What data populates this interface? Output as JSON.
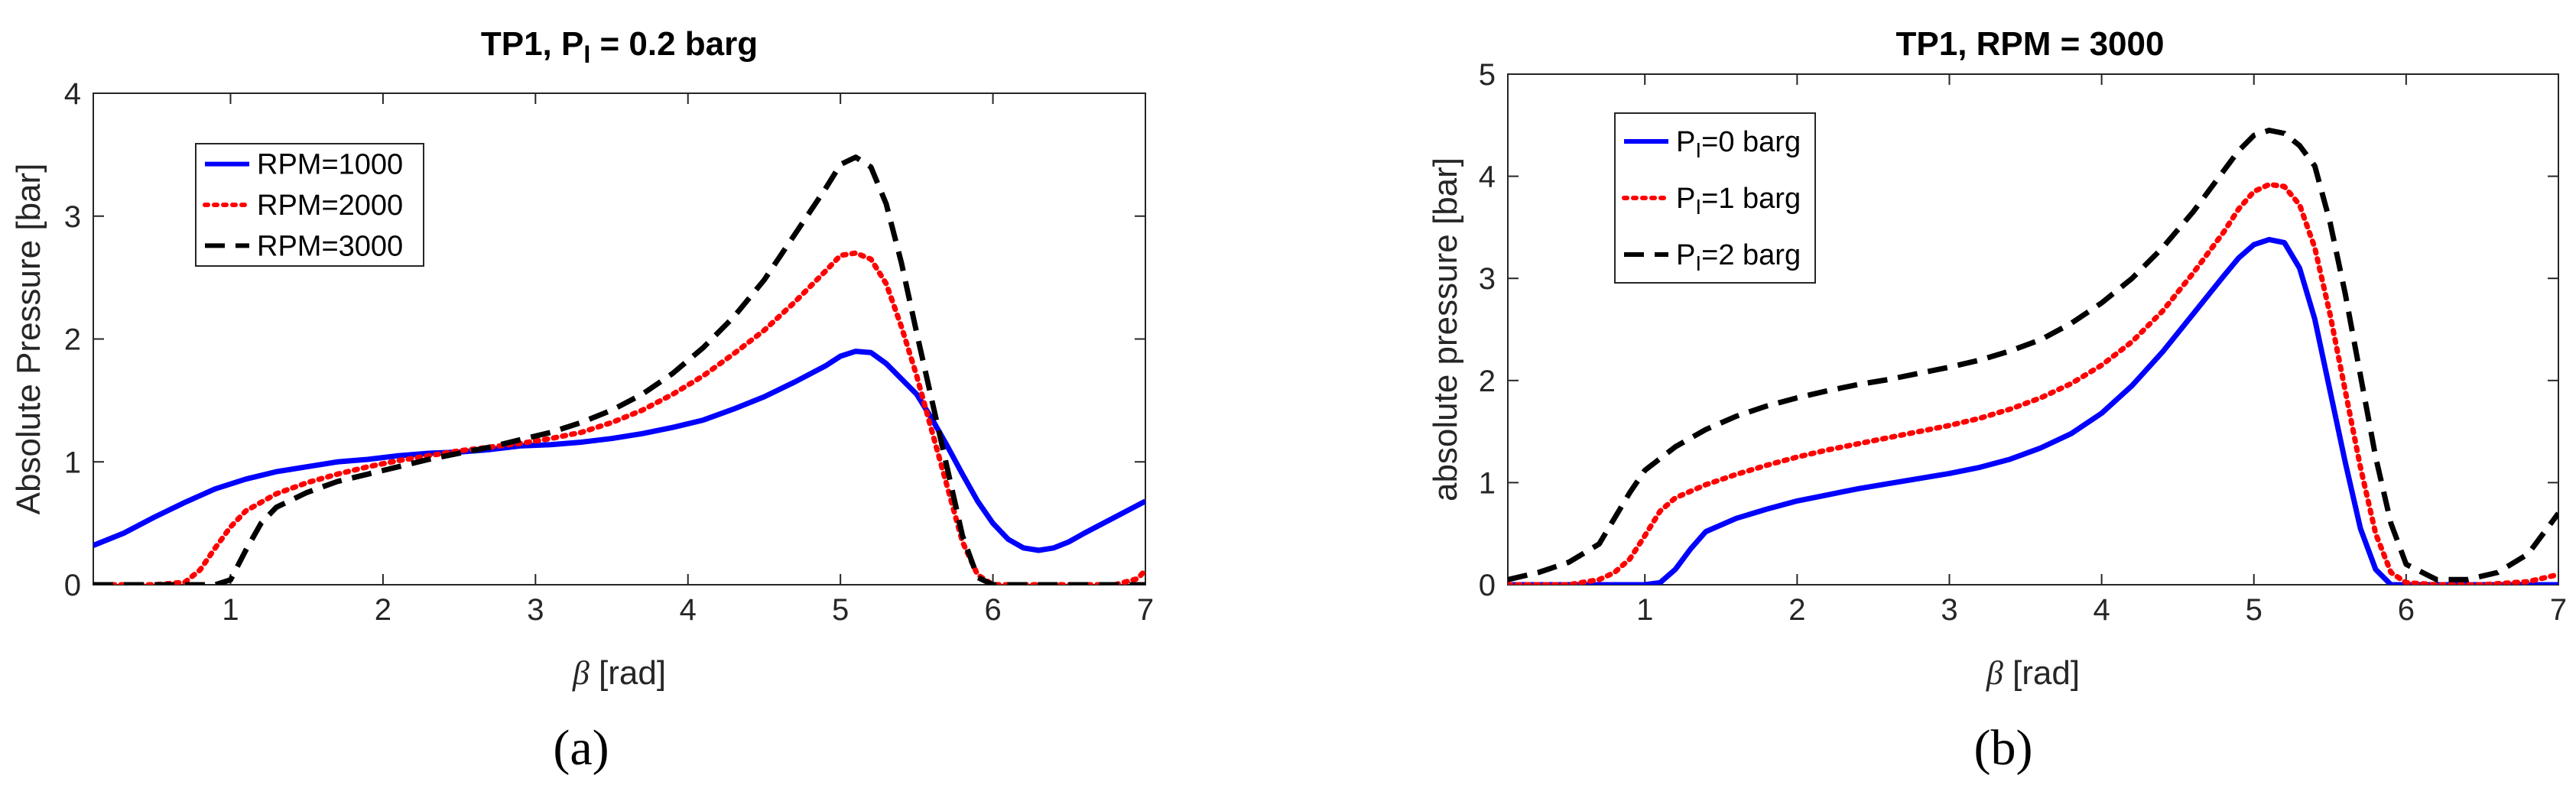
{
  "chart_data": [
    {
      "type": "line",
      "title": "TP1, P",
      "title_sub": "I",
      "title_rest": " = 0.2 barg",
      "xlabel_symbol": "β",
      "xlabel_unit": " [rad]",
      "ylabel": "Absolute Pressure [bar]",
      "xlim": [
        0.1,
        7
      ],
      "ylim": [
        0,
        4
      ],
      "xticks": [
        1,
        2,
        3,
        4,
        5,
        6,
        7
      ],
      "yticks": [
        0,
        1,
        2,
        3,
        4
      ],
      "panel_label": "(a)",
      "legend_position": "top-left",
      "series": [
        {
          "name": "RPM=1000",
          "color": "#0000ff",
          "style": "solid",
          "x": [
            0.1,
            0.3,
            0.5,
            0.7,
            0.9,
            1.1,
            1.3,
            1.5,
            1.7,
            1.9,
            2.1,
            2.3,
            2.5,
            2.7,
            2.9,
            3.1,
            3.3,
            3.5,
            3.7,
            3.9,
            4.1,
            4.3,
            4.5,
            4.7,
            4.9,
            5.0,
            5.1,
            5.2,
            5.3,
            5.5,
            5.6,
            5.7,
            5.8,
            5.9,
            6.0,
            6.1,
            6.2,
            6.3,
            6.4,
            6.5,
            6.6,
            6.8,
            7.0
          ],
          "y": [
            0.32,
            0.42,
            0.55,
            0.67,
            0.78,
            0.86,
            0.92,
            0.96,
            1.0,
            1.02,
            1.05,
            1.07,
            1.08,
            1.1,
            1.13,
            1.14,
            1.16,
            1.19,
            1.23,
            1.28,
            1.34,
            1.43,
            1.53,
            1.65,
            1.78,
            1.86,
            1.9,
            1.89,
            1.8,
            1.55,
            1.35,
            1.13,
            0.9,
            0.68,
            0.5,
            0.37,
            0.3,
            0.28,
            0.3,
            0.35,
            0.42,
            0.55,
            0.68
          ]
        },
        {
          "name": "RPM=2000",
          "color": "#ff0000",
          "style": "dotted",
          "x": [
            0.1,
            0.3,
            0.5,
            0.7,
            0.8,
            0.9,
            1.0,
            1.1,
            1.3,
            1.5,
            1.7,
            1.9,
            2.1,
            2.3,
            2.5,
            2.7,
            2.9,
            3.1,
            3.3,
            3.5,
            3.7,
            3.9,
            4.1,
            4.3,
            4.5,
            4.7,
            4.9,
            5.0,
            5.1,
            5.2,
            5.3,
            5.4,
            5.5,
            5.6,
            5.7,
            5.8,
            5.9,
            6.0,
            6.2,
            6.4,
            6.6,
            6.8,
            6.95,
            7.0
          ],
          "y": [
            0.0,
            0.0,
            0.0,
            0.02,
            0.12,
            0.3,
            0.47,
            0.6,
            0.74,
            0.83,
            0.9,
            0.96,
            1.01,
            1.05,
            1.09,
            1.12,
            1.15,
            1.19,
            1.24,
            1.32,
            1.42,
            1.55,
            1.7,
            1.88,
            2.07,
            2.3,
            2.55,
            2.68,
            2.7,
            2.65,
            2.45,
            2.1,
            1.7,
            1.25,
            0.8,
            0.35,
            0.08,
            0.0,
            0.0,
            0.0,
            0.0,
            0.0,
            0.05,
            0.12
          ]
        },
        {
          "name": "RPM=3000",
          "color": "#000000",
          "style": "dashed",
          "x": [
            0.1,
            0.3,
            0.5,
            0.7,
            0.9,
            1.0,
            1.1,
            1.2,
            1.3,
            1.5,
            1.7,
            1.9,
            2.1,
            2.3,
            2.5,
            2.7,
            2.9,
            3.1,
            3.3,
            3.5,
            3.7,
            3.9,
            4.1,
            4.3,
            4.5,
            4.7,
            4.9,
            5.0,
            5.1,
            5.2,
            5.3,
            5.4,
            5.5,
            5.6,
            5.7,
            5.8,
            5.9,
            6.0,
            6.2,
            6.4,
            6.6,
            6.8,
            7.0
          ],
          "y": [
            0.0,
            0.0,
            0.0,
            0.0,
            0.0,
            0.04,
            0.28,
            0.5,
            0.63,
            0.75,
            0.84,
            0.9,
            0.96,
            1.02,
            1.07,
            1.12,
            1.18,
            1.24,
            1.32,
            1.42,
            1.55,
            1.72,
            1.93,
            2.18,
            2.48,
            2.85,
            3.22,
            3.42,
            3.48,
            3.4,
            3.1,
            2.62,
            2.05,
            1.5,
            0.95,
            0.4,
            0.06,
            0.0,
            0.0,
            0.0,
            0.0,
            0.0,
            0.0
          ]
        }
      ]
    },
    {
      "type": "line",
      "title": "TP1, RPM = 3000",
      "xlabel_symbol": "β",
      "xlabel_unit": " [rad]",
      "ylabel": "absolute pressure [bar]",
      "xlim": [
        0.1,
        7
      ],
      "ylim": [
        0,
        5
      ],
      "xticks": [
        1,
        2,
        3,
        4,
        5,
        6,
        7
      ],
      "yticks": [
        0,
        1,
        2,
        3,
        4,
        5
      ],
      "panel_label": "(b)",
      "legend_position": "top-left",
      "series": [
        {
          "name": "P",
          "name_sub": "I",
          "name_rest": "=0 barg",
          "color": "#0000ff",
          "style": "solid",
          "x": [
            0.1,
            0.3,
            0.5,
            0.7,
            0.9,
            1.0,
            1.1,
            1.2,
            1.3,
            1.4,
            1.6,
            1.8,
            2.0,
            2.2,
            2.4,
            2.6,
            2.8,
            3.0,
            3.2,
            3.4,
            3.6,
            3.8,
            4.0,
            4.2,
            4.4,
            4.6,
            4.8,
            4.9,
            5.0,
            5.1,
            5.2,
            5.3,
            5.4,
            5.5,
            5.6,
            5.7,
            5.8,
            5.9,
            6.0,
            6.2,
            6.5,
            6.8,
            7.0
          ],
          "y": [
            0.0,
            0.0,
            0.0,
            0.0,
            0.0,
            0.0,
            0.02,
            0.15,
            0.35,
            0.52,
            0.65,
            0.74,
            0.82,
            0.88,
            0.94,
            0.99,
            1.04,
            1.09,
            1.15,
            1.23,
            1.34,
            1.48,
            1.68,
            1.95,
            2.28,
            2.65,
            3.02,
            3.2,
            3.33,
            3.38,
            3.35,
            3.1,
            2.6,
            1.9,
            1.2,
            0.55,
            0.15,
            0.0,
            0.0,
            0.0,
            0.0,
            0.0,
            0.0
          ]
        },
        {
          "name": "P",
          "name_sub": "I",
          "name_rest": "=1 barg",
          "color": "#ff0000",
          "style": "dotted",
          "x": [
            0.1,
            0.3,
            0.5,
            0.7,
            0.8,
            0.9,
            1.0,
            1.1,
            1.2,
            1.4,
            1.6,
            1.8,
            2.0,
            2.2,
            2.4,
            2.6,
            2.8,
            3.0,
            3.2,
            3.4,
            3.6,
            3.8,
            4.0,
            4.2,
            4.4,
            4.6,
            4.8,
            4.9,
            5.0,
            5.1,
            5.2,
            5.3,
            5.4,
            5.5,
            5.6,
            5.7,
            5.8,
            5.9,
            6.0,
            6.2,
            6.5,
            6.8,
            7.0
          ],
          "y": [
            0.0,
            0.0,
            0.0,
            0.05,
            0.12,
            0.25,
            0.48,
            0.72,
            0.85,
            0.98,
            1.08,
            1.17,
            1.25,
            1.32,
            1.38,
            1.44,
            1.5,
            1.56,
            1.63,
            1.72,
            1.83,
            1.97,
            2.15,
            2.38,
            2.68,
            3.05,
            3.45,
            3.68,
            3.85,
            3.92,
            3.9,
            3.72,
            3.3,
            2.65,
            1.9,
            1.15,
            0.5,
            0.12,
            0.02,
            0.0,
            0.0,
            0.03,
            0.1
          ]
        },
        {
          "name": "P",
          "name_sub": "I",
          "name_rest": "=2 barg",
          "color": "#000000",
          "style": "dashed",
          "x": [
            0.1,
            0.3,
            0.5,
            0.7,
            0.8,
            0.9,
            1.0,
            1.2,
            1.4,
            1.6,
            1.8,
            2.0,
            2.2,
            2.4,
            2.6,
            2.8,
            3.0,
            3.2,
            3.4,
            3.6,
            3.8,
            4.0,
            4.2,
            4.4,
            4.6,
            4.8,
            4.9,
            5.0,
            5.1,
            5.2,
            5.3,
            5.4,
            5.5,
            5.6,
            5.7,
            5.8,
            5.9,
            6.0,
            6.2,
            6.4,
            6.6,
            6.8,
            7.0
          ],
          "y": [
            0.05,
            0.12,
            0.22,
            0.4,
            0.65,
            0.9,
            1.12,
            1.35,
            1.52,
            1.65,
            1.75,
            1.83,
            1.9,
            1.96,
            2.01,
            2.07,
            2.13,
            2.2,
            2.29,
            2.4,
            2.56,
            2.76,
            3.0,
            3.3,
            3.65,
            4.05,
            4.25,
            4.4,
            4.45,
            4.42,
            4.3,
            4.1,
            3.55,
            2.85,
            2.05,
            1.25,
            0.6,
            0.2,
            0.05,
            0.05,
            0.12,
            0.3,
            0.7
          ]
        }
      ]
    }
  ]
}
